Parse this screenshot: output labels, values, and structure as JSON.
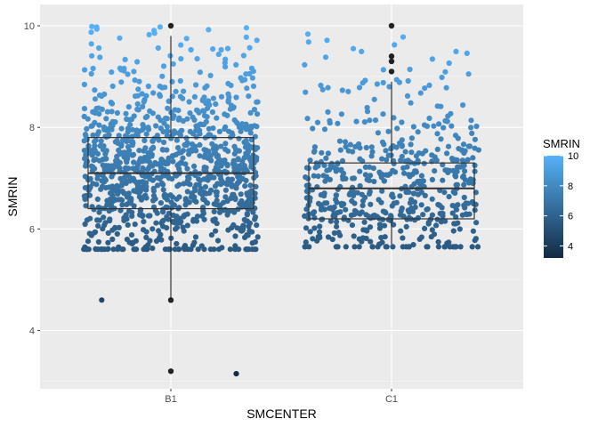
{
  "chart_data": {
    "type": "scatter",
    "subtype": "boxplot-with-jitter",
    "xlabel": "SMCENTER",
    "ylabel": "SMRIN",
    "categories": [
      "B1",
      "C1"
    ],
    "y_ticks": [
      4,
      6,
      8,
      10
    ],
    "ylim": [
      2.8,
      10.2
    ],
    "grid": true,
    "legend": {
      "title": "SMRIN",
      "placement": "right",
      "ticks": [
        4,
        6,
        8,
        10
      ],
      "range": [
        3.2,
        10.0
      ],
      "color_low": "#132b43",
      "color_high": "#56b1f7"
    },
    "boxes": [
      {
        "category": "B1",
        "min": 4.6,
        "q1": 6.4,
        "median": 7.1,
        "q3": 7.8,
        "max": 9.8,
        "outliers": [
          3.2,
          4.6,
          10.0
        ]
      },
      {
        "category": "C1",
        "min": 5.7,
        "q1": 6.2,
        "median": 6.8,
        "q3": 7.3,
        "max": 8.9,
        "outliers": [
          9.1,
          9.3,
          9.4,
          10.0
        ]
      }
    ],
    "jitter": [
      {
        "category": "B1",
        "count": 1100,
        "min": 5.6,
        "max": 10.0,
        "center": 7.1,
        "spread": 0.85,
        "extra": [
          3.15,
          4.6
        ]
      },
      {
        "category": "C1",
        "count": 550,
        "min": 5.65,
        "max": 10.0,
        "center": 6.8,
        "spread": 0.75,
        "extra": []
      }
    ]
  }
}
